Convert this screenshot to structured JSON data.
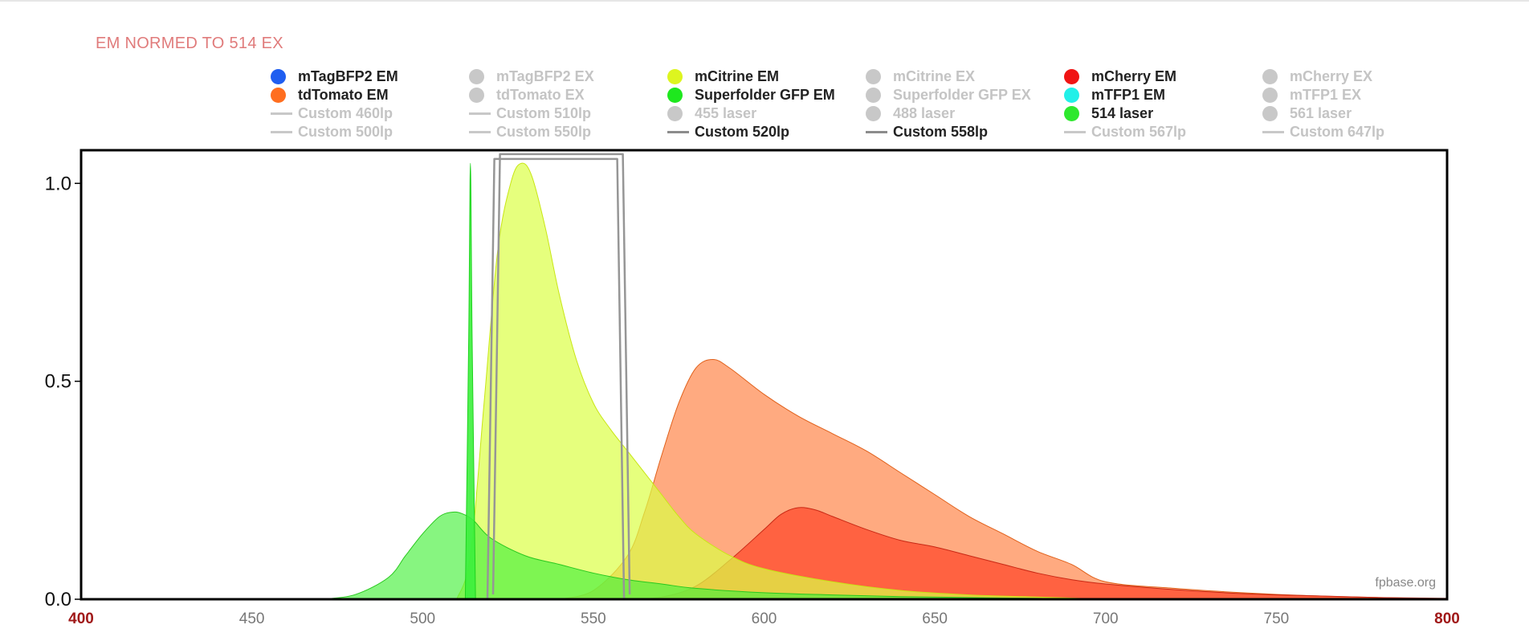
{
  "normalization_label": "EM NORMED TO 514 EX",
  "watermark": "fpbase.org",
  "legend": [
    {
      "label": "mTagBFP2 EM",
      "active": true,
      "marker": "dot",
      "color": "#1f5ef0"
    },
    {
      "label": "mTagBFP2 EX",
      "active": false,
      "marker": "dot",
      "color": "#c8c8c8"
    },
    {
      "label": "mCitrine EM",
      "active": true,
      "marker": "dot",
      "color": "#ddf51f"
    },
    {
      "label": "mCitrine EX",
      "active": false,
      "marker": "dot",
      "color": "#c8c8c8"
    },
    {
      "label": "mCherry EM",
      "active": true,
      "marker": "dot",
      "color": "#f01414"
    },
    {
      "label": "mCherry EX",
      "active": false,
      "marker": "dot",
      "color": "#c8c8c8"
    },
    {
      "label": "tdTomato EM",
      "active": true,
      "marker": "dot",
      "color": "#ff6e1f"
    },
    {
      "label": "tdTomato EX",
      "active": false,
      "marker": "dot",
      "color": "#c8c8c8"
    },
    {
      "label": "Superfolder GFP EM",
      "active": true,
      "marker": "dot",
      "color": "#1ee81e"
    },
    {
      "label": "Superfolder GFP EX",
      "active": false,
      "marker": "dot",
      "color": "#c8c8c8"
    },
    {
      "label": "mTFP1 EM",
      "active": true,
      "marker": "dot",
      "color": "#21f0e8"
    },
    {
      "label": "mTFP1 EX",
      "active": false,
      "marker": "dot",
      "color": "#c8c8c8"
    },
    {
      "label": "Custom 460lp",
      "active": false,
      "marker": "line",
      "color": "#c8c8c8"
    },
    {
      "label": "Custom 510lp",
      "active": false,
      "marker": "line",
      "color": "#c8c8c8"
    },
    {
      "label": "455 laser",
      "active": false,
      "marker": "dot",
      "color": "#c8c8c8"
    },
    {
      "label": "488 laser",
      "active": false,
      "marker": "dot",
      "color": "#c8c8c8"
    },
    {
      "label": "514 laser",
      "active": true,
      "marker": "dot",
      "color": "#2ee82e"
    },
    {
      "label": "561 laser",
      "active": false,
      "marker": "dot",
      "color": "#c8c8c8"
    },
    {
      "label": "Custom 500lp",
      "active": false,
      "marker": "line",
      "color": "#c8c8c8"
    },
    {
      "label": "Custom 550lp",
      "active": false,
      "marker": "line",
      "color": "#c8c8c8"
    },
    {
      "label": "Custom 520lp",
      "active": true,
      "marker": "line",
      "color": "#8c8c8c"
    },
    {
      "label": "Custom 558lp",
      "active": true,
      "marker": "line",
      "color": "#8c8c8c"
    },
    {
      "label": "Custom 567lp",
      "active": false,
      "marker": "line",
      "color": "#c8c8c8"
    },
    {
      "label": "Custom 647lp",
      "active": false,
      "marker": "line",
      "color": "#c8c8c8"
    }
  ],
  "chart_data": {
    "type": "area",
    "xlim": [
      400,
      800
    ],
    "ylim": [
      0,
      1.03
    ],
    "x_ticks": [
      400,
      450,
      500,
      550,
      600,
      650,
      700,
      750,
      800
    ],
    "x_tick_labels": [
      "400",
      "450",
      "500",
      "550",
      "600",
      "650",
      "700",
      "750",
      "800"
    ],
    "x_edge_label_color": "#a01818",
    "y_ticks": [
      0.0,
      0.5,
      1.0
    ],
    "y_tick_labels": [
      "0.0",
      "0.5",
      "1.0"
    ],
    "series": [
      {
        "name": "tdTomato EM",
        "color": "#ff7d3c",
        "stroke": "#e0601a",
        "opacity": 0.65,
        "x": [
          540,
          550,
          560,
          565,
          570,
          575,
          580,
          585,
          590,
          600,
          610,
          620,
          630,
          640,
          650,
          660,
          670,
          680,
          690,
          700,
          720,
          740,
          760,
          780,
          800
        ],
        "y": [
          0.0,
          0.02,
          0.1,
          0.2,
          0.33,
          0.45,
          0.53,
          0.55,
          0.53,
          0.47,
          0.42,
          0.38,
          0.34,
          0.29,
          0.24,
          0.19,
          0.15,
          0.11,
          0.08,
          0.04,
          0.025,
          0.015,
          0.008,
          0.004,
          0.001
        ]
      },
      {
        "name": "mCherry EM",
        "color": "#ff3c1e",
        "stroke": "#c82814",
        "opacity": 0.65,
        "x": [
          560,
          570,
          580,
          590,
          600,
          605,
          610,
          615,
          620,
          630,
          640,
          650,
          660,
          670,
          680,
          690,
          700,
          720,
          740,
          760,
          780,
          800
        ],
        "y": [
          0.0,
          0.005,
          0.03,
          0.09,
          0.16,
          0.195,
          0.21,
          0.205,
          0.19,
          0.16,
          0.135,
          0.12,
          0.1,
          0.08,
          0.06,
          0.045,
          0.035,
          0.022,
          0.013,
          0.008,
          0.004,
          0.002
        ]
      },
      {
        "name": "mCitrine EM",
        "color": "#dcff46",
        "stroke": "#c8e614",
        "opacity": 0.7,
        "x": [
          510,
          514,
          518,
          522,
          526,
          529,
          532,
          536,
          540,
          545,
          550,
          555,
          560,
          565,
          570,
          575,
          580,
          590,
          600,
          620,
          640,
          660,
          680,
          700
        ],
        "y": [
          0.0,
          0.1,
          0.45,
          0.8,
          0.96,
          1.0,
          0.97,
          0.85,
          0.7,
          0.55,
          0.45,
          0.39,
          0.34,
          0.29,
          0.24,
          0.19,
          0.15,
          0.1,
          0.07,
          0.04,
          0.02,
          0.01,
          0.005,
          0.0
        ]
      },
      {
        "name": "Superfolder GFP EM",
        "color": "#46f03c",
        "stroke": "#28c81e",
        "opacity": 0.65,
        "x": [
          470,
          480,
          490,
          495,
          500,
          505,
          509,
          512,
          515,
          520,
          530,
          540,
          550,
          560,
          570,
          580,
          600,
          620,
          640,
          660,
          680,
          700
        ],
        "y": [
          0.0,
          0.01,
          0.05,
          0.1,
          0.15,
          0.19,
          0.2,
          0.195,
          0.18,
          0.14,
          0.1,
          0.08,
          0.06,
          0.045,
          0.035,
          0.025,
          0.015,
          0.01,
          0.006,
          0.004,
          0.002,
          0.0
        ]
      },
      {
        "name": "514 laser",
        "color": "#3cf03c",
        "stroke": "#1ed21e",
        "opacity": 0.9,
        "x": [
          512.5,
          513.5,
          514,
          514.5,
          515.5
        ],
        "y": [
          0.0,
          0.6,
          1.0,
          0.6,
          0.0
        ]
      }
    ],
    "filters": [
      {
        "name": "Custom 520lp",
        "color": "#969696",
        "x": [
          519,
          520,
          521,
          557,
          558,
          559
        ],
        "y": [
          0.0,
          0.5,
          1.01,
          1.01,
          0.5,
          0.0
        ]
      },
      {
        "name": "Custom 558lp",
        "color": "#969696",
        "x": [
          519,
          520,
          521,
          557,
          558,
          559
        ],
        "y": [
          0.0,
          0.5,
          1.01,
          1.01,
          0.5,
          0.0
        ]
      }
    ]
  }
}
